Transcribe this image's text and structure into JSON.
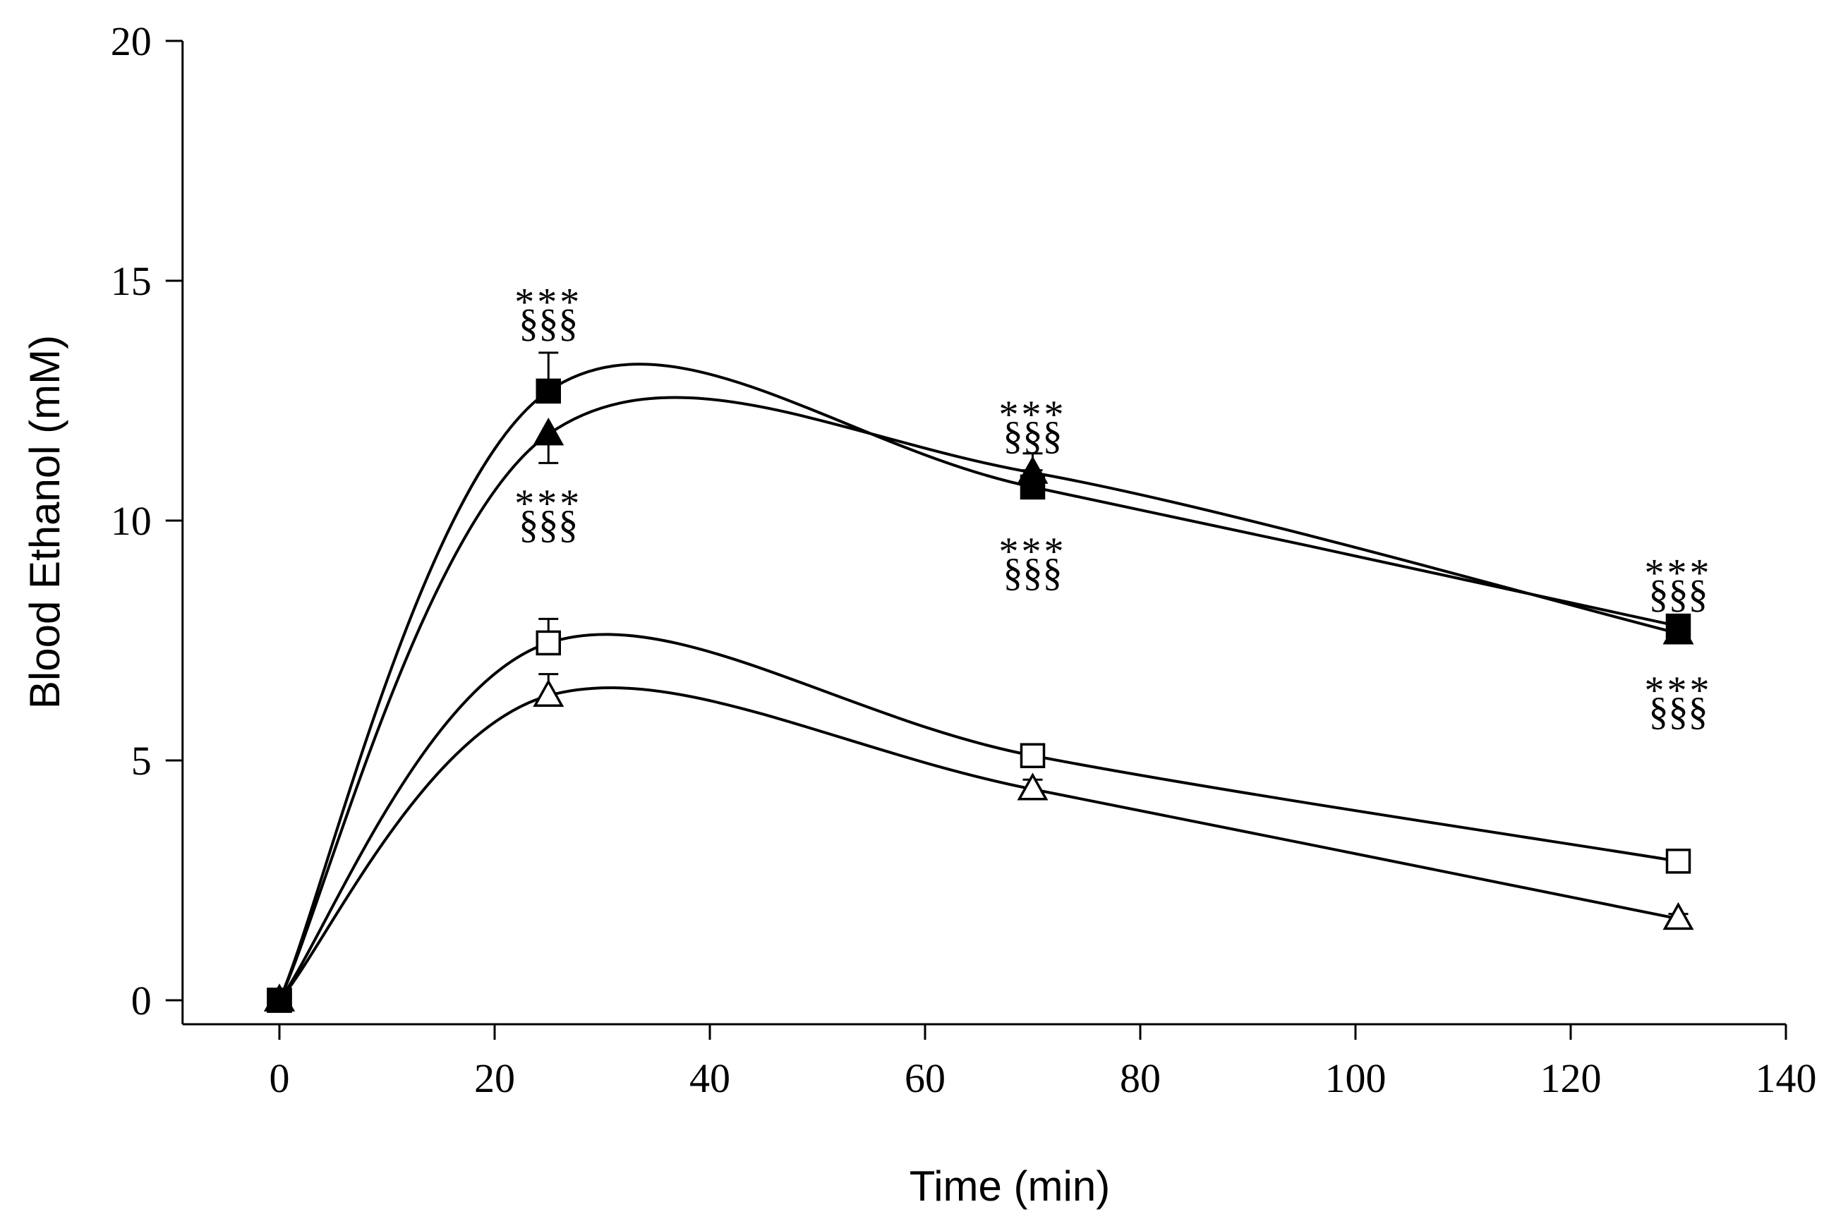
{
  "chart_data": {
    "type": "line",
    "title": "",
    "xlabel": "Time (min)",
    "ylabel": "Blood Ethanol (mM)",
    "xlim": [
      -9,
      140
    ],
    "ylim": [
      -0.5,
      20
    ],
    "xticks": [
      0,
      20,
      40,
      60,
      80,
      100,
      120,
      140
    ],
    "yticks": [
      0,
      5,
      10,
      15,
      20
    ],
    "x": [
      0,
      25,
      70,
      130
    ],
    "series": [
      {
        "name": "filled-square",
        "marker": "square",
        "filled": true,
        "values": [
          0,
          12.7,
          10.7,
          7.8
        ],
        "errors": [
          0,
          0.8,
          0.35,
          0.2
        ]
      },
      {
        "name": "filled-triangle",
        "marker": "triangle",
        "filled": true,
        "values": [
          0,
          11.8,
          11.0,
          7.65
        ],
        "errors": [
          0,
          0.6,
          0.4,
          0.3
        ]
      },
      {
        "name": "open-square",
        "marker": "square",
        "filled": false,
        "values": [
          0,
          7.45,
          5.1,
          2.9
        ],
        "errors": [
          0,
          0.5,
          0.1,
          0.1
        ]
      },
      {
        "name": "open-triangle",
        "marker": "triangle",
        "filled": false,
        "values": [
          0,
          6.35,
          4.4,
          1.7
        ],
        "errors": [
          0,
          0.45,
          0.2,
          0.1
        ]
      }
    ],
    "annotations": [
      {
        "x": 25,
        "y": 14.7,
        "line1": "***",
        "line2": "§§§"
      },
      {
        "x": 25,
        "y": 10.5,
        "line1": "***",
        "line2": "§§§"
      },
      {
        "x": 70,
        "y": 12.35,
        "line1": "***",
        "line2": "§§§"
      },
      {
        "x": 70,
        "y": 9.5,
        "line1": "***",
        "line2": "§§§"
      },
      {
        "x": 130,
        "y": 9.05,
        "line1": "***",
        "line2": "§§§"
      },
      {
        "x": 130,
        "y": 6.6,
        "line1": "***",
        "line2": "§§§"
      }
    ]
  }
}
